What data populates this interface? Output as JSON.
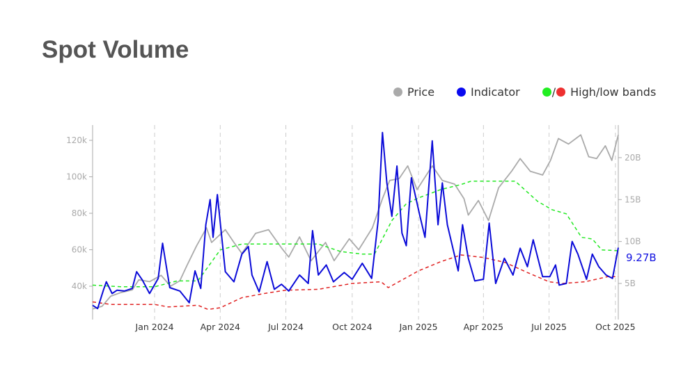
{
  "title": "Spot Volume",
  "legend": {
    "price": "Price",
    "indicator": "Indicator",
    "slash": "/",
    "bands": "High/low bands"
  },
  "colors": {
    "price": "#aaaaaa",
    "indicator": "#0a0ad8",
    "high": "#22e822",
    "low": "#e02020"
  },
  "chart_data": {
    "type": "line",
    "title": "Spot Volume",
    "xlim": [
      "2023-10-07",
      "2025-10-05"
    ],
    "x_ticks": [
      {
        "date": "2024-01-01",
        "label": "Jan 2024"
      },
      {
        "date": "2024-04-01",
        "label": "Apr 2024"
      },
      {
        "date": "2024-07-01",
        "label": "Jul 2024"
      },
      {
        "date": "2024-10-01",
        "label": "Oct 2024"
      },
      {
        "date": "2025-01-01",
        "label": "Jan 2025"
      },
      {
        "date": "2025-04-01",
        "label": "Apr 2025"
      },
      {
        "date": "2025-07-01",
        "label": "Jul 2025"
      },
      {
        "date": "2025-10-01",
        "label": "Oct 2025"
      }
    ],
    "left_axis": {
      "unit": "k",
      "ticks": [
        {
          "v": 40,
          "label": "40k"
        },
        {
          "v": 60,
          "label": "60k"
        },
        {
          "v": 80,
          "label": "80k"
        },
        {
          "v": 100,
          "label": "100k"
        },
        {
          "v": 120,
          "label": "120k"
        }
      ]
    },
    "right_axis": {
      "unit": "B",
      "ticks": [
        {
          "v": 5,
          "label": "5B"
        },
        {
          "v": 10,
          "label": "10B"
        },
        {
          "v": 15,
          "label": "15B"
        },
        {
          "v": 20,
          "label": "20B"
        }
      ]
    },
    "last_value_label": "9.27B",
    "series": [
      {
        "name": "Price",
        "axis": "left",
        "points": [
          [
            "2023-10-07",
            27.5
          ],
          [
            "2023-10-20",
            29
          ],
          [
            "2023-11-01",
            34.5
          ],
          [
            "2023-11-15",
            36.5
          ],
          [
            "2023-12-01",
            38
          ],
          [
            "2023-12-10",
            43.5
          ],
          [
            "2023-12-25",
            42.5
          ],
          [
            "2024-01-10",
            46
          ],
          [
            "2024-01-23",
            40
          ],
          [
            "2024-02-05",
            43
          ],
          [
            "2024-02-15",
            51.5
          ],
          [
            "2024-02-28",
            62
          ],
          [
            "2024-03-13",
            72
          ],
          [
            "2024-03-20",
            64
          ],
          [
            "2024-04-08",
            71
          ],
          [
            "2024-04-20",
            64
          ],
          [
            "2024-05-01",
            58
          ],
          [
            "2024-05-20",
            69
          ],
          [
            "2024-06-07",
            71
          ],
          [
            "2024-06-25",
            61
          ],
          [
            "2024-07-05",
            56
          ],
          [
            "2024-07-20",
            67
          ],
          [
            "2024-08-05",
            54
          ],
          [
            "2024-08-25",
            64
          ],
          [
            "2024-09-06",
            54
          ],
          [
            "2024-09-27",
            66
          ],
          [
            "2024-10-10",
            60
          ],
          [
            "2024-10-29",
            72
          ],
          [
            "2024-11-12",
            88
          ],
          [
            "2024-11-22",
            98
          ],
          [
            "2024-12-05",
            99
          ],
          [
            "2024-12-17",
            106
          ],
          [
            "2024-12-30",
            93
          ],
          [
            "2025-01-20",
            106
          ],
          [
            "2025-02-03",
            98
          ],
          [
            "2025-02-20",
            96
          ],
          [
            "2025-03-05",
            88
          ],
          [
            "2025-03-11",
            79
          ],
          [
            "2025-03-25",
            87
          ],
          [
            "2025-04-08",
            76
          ],
          [
            "2025-04-22",
            94
          ],
          [
            "2025-05-10",
            103
          ],
          [
            "2025-05-22",
            110
          ],
          [
            "2025-06-05",
            103
          ],
          [
            "2025-06-22",
            101
          ],
          [
            "2025-07-03",
            109
          ],
          [
            "2025-07-14",
            121
          ],
          [
            "2025-07-28",
            118
          ],
          [
            "2025-08-14",
            123
          ],
          [
            "2025-08-25",
            111
          ],
          [
            "2025-09-05",
            110
          ],
          [
            "2025-09-17",
            117
          ],
          [
            "2025-09-26",
            109
          ],
          [
            "2025-10-05",
            123
          ]
        ]
      },
      {
        "name": "Indicator",
        "axis": "right",
        "points": [
          [
            "2023-10-07",
            2.4
          ],
          [
            "2023-10-14",
            2
          ],
          [
            "2023-10-22",
            4.2
          ],
          [
            "2023-10-26",
            5.2
          ],
          [
            "2023-11-03",
            3.8
          ],
          [
            "2023-11-10",
            4.2
          ],
          [
            "2023-11-20",
            4.1
          ],
          [
            "2023-12-01",
            4.4
          ],
          [
            "2023-12-07",
            6.4
          ],
          [
            "2023-12-15",
            5.4
          ],
          [
            "2023-12-25",
            3.8
          ],
          [
            "2024-01-06",
            5.6
          ],
          [
            "2024-01-12",
            9.8
          ],
          [
            "2024-01-22",
            4.5
          ],
          [
            "2024-02-05",
            4.1
          ],
          [
            "2024-02-18",
            2.7
          ],
          [
            "2024-02-26",
            6.5
          ],
          [
            "2024-03-05",
            4.4
          ],
          [
            "2024-03-12",
            12
          ],
          [
            "2024-03-18",
            15
          ],
          [
            "2024-03-22",
            10.5
          ],
          [
            "2024-03-28",
            15.6
          ],
          [
            "2024-04-08",
            6.4
          ],
          [
            "2024-04-20",
            5.2
          ],
          [
            "2024-05-01",
            8.5
          ],
          [
            "2024-05-10",
            9.4
          ],
          [
            "2024-05-15",
            6
          ],
          [
            "2024-05-25",
            4
          ],
          [
            "2024-06-05",
            7.6
          ],
          [
            "2024-06-15",
            4.3
          ],
          [
            "2024-06-25",
            4.9
          ],
          [
            "2024-07-05",
            4.1
          ],
          [
            "2024-07-20",
            6
          ],
          [
            "2024-08-01",
            5
          ],
          [
            "2024-08-07",
            11.3
          ],
          [
            "2024-08-15",
            6
          ],
          [
            "2024-08-26",
            7.2
          ],
          [
            "2024-09-05",
            5.2
          ],
          [
            "2024-09-20",
            6.3
          ],
          [
            "2024-10-01",
            5.5
          ],
          [
            "2024-10-15",
            7.4
          ],
          [
            "2024-10-28",
            5.6
          ],
          [
            "2024-11-06",
            12.5
          ],
          [
            "2024-11-12",
            23
          ],
          [
            "2024-11-18",
            17
          ],
          [
            "2024-11-25",
            13
          ],
          [
            "2024-12-02",
            19
          ],
          [
            "2024-12-09",
            11
          ],
          [
            "2024-12-15",
            9.5
          ],
          [
            "2024-12-22",
            17.6
          ],
          [
            "2025-01-03",
            13
          ],
          [
            "2025-01-10",
            10.5
          ],
          [
            "2025-01-20",
            22
          ],
          [
            "2025-01-28",
            12
          ],
          [
            "2025-02-03",
            17
          ],
          [
            "2025-02-10",
            12
          ],
          [
            "2025-02-25",
            6.5
          ],
          [
            "2025-03-03",
            12
          ],
          [
            "2025-03-11",
            8
          ],
          [
            "2025-03-20",
            5.3
          ],
          [
            "2025-04-01",
            5.5
          ],
          [
            "2025-04-09",
            12.2
          ],
          [
            "2025-04-18",
            5
          ],
          [
            "2025-04-30",
            8
          ],
          [
            "2025-05-12",
            6
          ],
          [
            "2025-05-22",
            9.2
          ],
          [
            "2025-06-01",
            7
          ],
          [
            "2025-06-09",
            10.2
          ],
          [
            "2025-06-22",
            5.8
          ],
          [
            "2025-07-02",
            5.8
          ],
          [
            "2025-07-10",
            7.2
          ],
          [
            "2025-07-15",
            4.8
          ],
          [
            "2025-07-25",
            5
          ],
          [
            "2025-08-02",
            10
          ],
          [
            "2025-08-10",
            8.5
          ],
          [
            "2025-08-22",
            5.5
          ],
          [
            "2025-08-30",
            8.5
          ],
          [
            "2025-09-08",
            7
          ],
          [
            "2025-09-18",
            6
          ],
          [
            "2025-09-27",
            5.6
          ],
          [
            "2025-10-05",
            9.27
          ]
        ]
      },
      {
        "name": "High band",
        "axis": "right",
        "points": [
          [
            "2023-10-07",
            4.8
          ],
          [
            "2023-11-15",
            4.6
          ],
          [
            "2024-01-01",
            4.6
          ],
          [
            "2024-02-01",
            5.3
          ],
          [
            "2024-03-01",
            5.3
          ],
          [
            "2024-04-01",
            9
          ],
          [
            "2024-05-01",
            9.7
          ],
          [
            "2024-08-15",
            9.7
          ],
          [
            "2024-09-15",
            8.8
          ],
          [
            "2024-10-15",
            8.5
          ],
          [
            "2024-11-01",
            8.5
          ],
          [
            "2024-11-25",
            12.5
          ],
          [
            "2024-12-15",
            14.5
          ],
          [
            "2025-01-01",
            15.2
          ],
          [
            "2025-02-01",
            16.2
          ],
          [
            "2025-03-01",
            16.8
          ],
          [
            "2025-03-15",
            17.2
          ],
          [
            "2025-05-15",
            17.2
          ],
          [
            "2025-06-15",
            14.8
          ],
          [
            "2025-07-05",
            13.8
          ],
          [
            "2025-07-25",
            13.3
          ],
          [
            "2025-08-15",
            10.5
          ],
          [
            "2025-08-30",
            10.3
          ],
          [
            "2025-09-12",
            9
          ],
          [
            "2025-10-05",
            8.9
          ]
        ]
      },
      {
        "name": "Low band",
        "axis": "right",
        "points": [
          [
            "2023-10-07",
            2.8
          ],
          [
            "2023-11-01",
            2.5
          ],
          [
            "2024-01-01",
            2.5
          ],
          [
            "2024-01-20",
            2.2
          ],
          [
            "2024-03-01",
            2.4
          ],
          [
            "2024-03-15",
            1.9
          ],
          [
            "2024-04-01",
            2.1
          ],
          [
            "2024-05-01",
            3.3
          ],
          [
            "2024-06-01",
            3.8
          ],
          [
            "2024-07-01",
            4.2
          ],
          [
            "2024-08-15",
            4.3
          ],
          [
            "2024-10-01",
            5
          ],
          [
            "2024-11-10",
            5.2
          ],
          [
            "2024-11-20",
            4.5
          ],
          [
            "2025-01-01",
            6.5
          ],
          [
            "2025-02-01",
            7.6
          ],
          [
            "2025-03-01",
            8.4
          ],
          [
            "2025-04-01",
            8.1
          ],
          [
            "2025-05-01",
            7.5
          ],
          [
            "2025-06-01",
            6.3
          ],
          [
            "2025-07-01",
            5.2
          ],
          [
            "2025-07-20",
            5
          ],
          [
            "2025-08-20",
            5.2
          ],
          [
            "2025-09-20",
            5.8
          ],
          [
            "2025-10-05",
            5.8
          ]
        ]
      }
    ]
  }
}
